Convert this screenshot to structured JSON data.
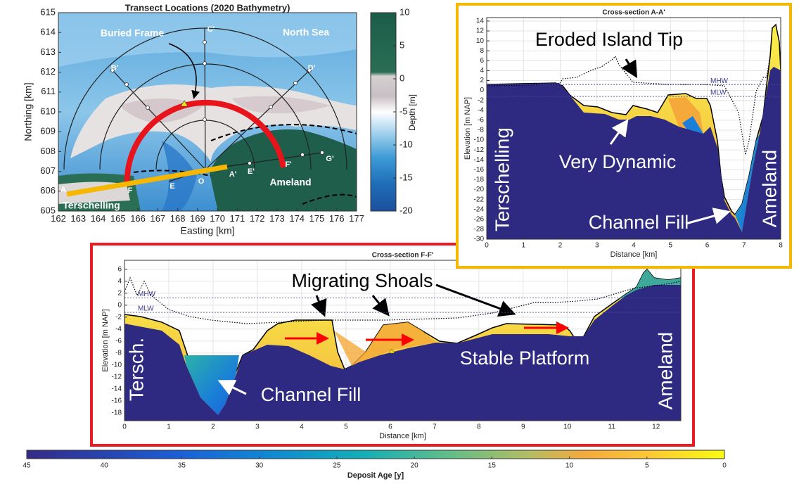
{
  "chart_data": [
    {
      "type": "map",
      "title": "Transect Locations (2020 Bathymetry)",
      "x_label": "Easting [km]",
      "y_label": "Northing [km]",
      "xlim": [
        162,
        177
      ],
      "ylim": [
        605,
        615
      ],
      "xticks": [
        162,
        163,
        164,
        165,
        166,
        167,
        168,
        169,
        170,
        171,
        172,
        173,
        174,
        175,
        176,
        177
      ],
      "yticks": [
        605,
        606,
        607,
        608,
        609,
        610,
        611,
        612,
        613,
        614,
        615
      ],
      "annotations": [
        "Buried Frame",
        "North Sea",
        "Ameland",
        "Terschelling",
        "A",
        "A'",
        "B'",
        "C'",
        "D'",
        "E",
        "E'",
        "F",
        "F'",
        "G'",
        "O"
      ],
      "colorbar": {
        "label": "Depth [m]",
        "lim": [
          -20,
          10
        ],
        "ticks": [
          10,
          5,
          0,
          -5,
          -10,
          -15,
          -20
        ]
      }
    },
    {
      "type": "cross-section",
      "title": "Cross-section A-A'",
      "x_label": "Distance [km]",
      "y_label": "Elevation [m NAP]",
      "xlim": [
        0,
        8
      ],
      "ylim": [
        -30,
        14.7
      ],
      "xticks": [
        0,
        1,
        2,
        3,
        4,
        5,
        6,
        7,
        8
      ],
      "yticks": [
        -30,
        -28,
        -26,
        -24,
        -22,
        -20,
        -18,
        -16,
        -14,
        -12,
        -10,
        -8,
        -6,
        -4,
        -2,
        0,
        2,
        4,
        6,
        8,
        10,
        12,
        14
      ],
      "grid": true,
      "reference_lines": [
        {
          "name": "MHW",
          "value": 1.2
        },
        {
          "name": "MLW",
          "value": -1.2
        }
      ],
      "annotations": [
        "Eroded Island Tip",
        "Very Dynamic",
        "Channel Fill",
        "Terschelling",
        "Ameland"
      ]
    },
    {
      "type": "cross-section",
      "title": "Cross-section F-F'",
      "x_label": "Distance [km]",
      "y_label": "Elevation [m NAP]",
      "xlim": [
        0,
        12.56
      ],
      "ylim": [
        -19.3,
        7.5
      ],
      "xticks": [
        0,
        1,
        2,
        3,
        4,
        5,
        6,
        7,
        8,
        9,
        10,
        11,
        12
      ],
      "yticks": [
        -18,
        -16,
        -14,
        -12,
        -10,
        -8,
        -6,
        -4,
        -2,
        0,
        2,
        4,
        6
      ],
      "grid": true,
      "reference_lines": [
        {
          "name": "MHW",
          "value": 1.2
        },
        {
          "name": "MLW",
          "value": -1.2
        }
      ],
      "annotations": [
        "Migrating Shoals",
        "Channel Fill",
        "Stable Platform",
        "Tersch.",
        "Ameland"
      ]
    },
    {
      "type": "colorbar",
      "label": "Deposit Age [y]",
      "xlim": [
        45,
        0
      ],
      "xticks": [
        45,
        40,
        35,
        30,
        25,
        20,
        15,
        10,
        5,
        0
      ]
    }
  ]
}
